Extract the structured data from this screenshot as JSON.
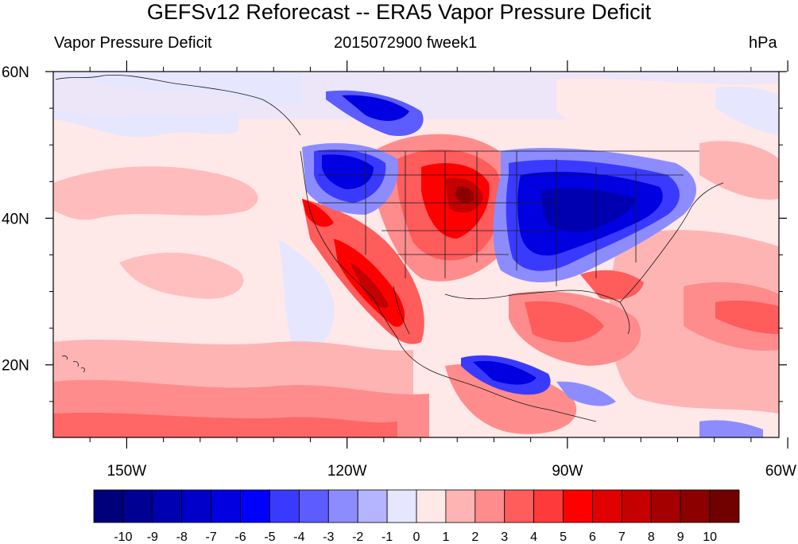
{
  "title": "GEFSv12 Reforecast -- ERA5 Vapor Pressure Deficit",
  "left_label": "Vapor Pressure Deficit",
  "center_label": "2015072900 fweek1",
  "right_label": "hPa",
  "lat_ticks": [
    {
      "value": 60,
      "label": "60N"
    },
    {
      "value": 40,
      "label": "40N"
    },
    {
      "value": 20,
      "label": "20N"
    }
  ],
  "lon_ticks": [
    {
      "value": -150,
      "label": "150W"
    },
    {
      "value": -120,
      "label": "120W"
    },
    {
      "value": -90,
      "label": "90W"
    },
    {
      "value": -60,
      "label": "60W"
    }
  ],
  "colorbar": {
    "colors": [
      "#00007a",
      "#000092",
      "#0000b0",
      "#0000c8",
      "#0000e0",
      "#0000ff",
      "#3a3aff",
      "#5c5cff",
      "#8c8cff",
      "#b4b4ff",
      "#e6e6ff",
      "#ffe8e8",
      "#ffb4b4",
      "#ff8c8c",
      "#ff5c5c",
      "#ff3a3a",
      "#ff0000",
      "#e00000",
      "#c40000",
      "#a40000",
      "#8c0000",
      "#700000"
    ],
    "labels": [
      "-10",
      "-9",
      "-8",
      "-7",
      "-6",
      "-5",
      "-4",
      "-3",
      "-2",
      "-1",
      "0",
      "1",
      "2",
      "3",
      "4",
      "5",
      "6",
      "7",
      "8",
      "9",
      "10"
    ]
  }
}
